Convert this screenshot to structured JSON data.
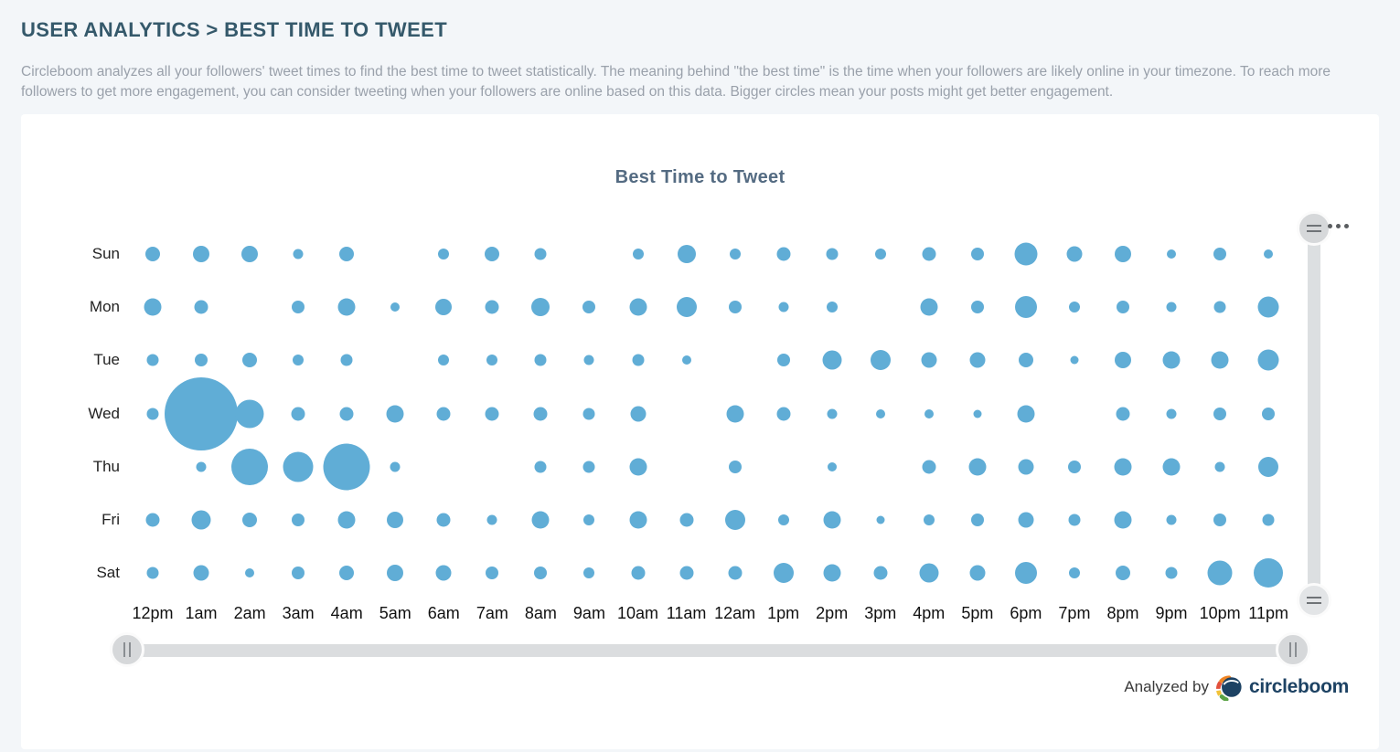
{
  "page": {
    "breadcrumb": "USER ANALYTICS > BEST TIME TO TWEET",
    "description": "Circleboom analyzes all your followers' tweet times to find the best time to tweet statistically. The meaning behind \"the best time\" is the time when your followers are likely online in your timezone. To reach more followers to get more engagement, you can consider tweeting when your followers are online based on this data. Bigger circles mean your posts might get better engagement."
  },
  "chart_data": {
    "type": "scatter",
    "subtype": "bubble-matrix",
    "title": "Best Time to Tweet",
    "xlabel": "",
    "ylabel": "",
    "days": [
      "Sun",
      "Mon",
      "Tue",
      "Wed",
      "Thu",
      "Fri",
      "Sat"
    ],
    "hours": [
      "12pm",
      "1am",
      "2am",
      "3am",
      "4am",
      "5am",
      "6am",
      "7am",
      "8am",
      "9am",
      "10am",
      "11am",
      "12am",
      "1pm",
      "2pm",
      "3pm",
      "4pm",
      "5pm",
      "6pm",
      "7pm",
      "8pm",
      "9pm",
      "10pm",
      "11pm"
    ],
    "size_unit": "bubble radius in screen px; 0 means no bubble shown",
    "series": [
      {
        "name": "Sun",
        "radii": [
          8,
          9,
          9,
          5.5,
          8,
          0,
          6,
          8,
          6.5,
          0,
          6,
          10,
          6,
          7.5,
          6.5,
          6,
          7.5,
          7,
          12.5,
          8.5,
          9,
          5,
          7,
          5
        ]
      },
      {
        "name": "Mon",
        "radii": [
          9.5,
          7.5,
          0,
          7,
          9.5,
          5,
          9,
          7.5,
          10,
          7,
          9.5,
          11,
          7,
          5.5,
          6,
          0,
          9.5,
          7,
          12,
          6,
          7,
          5.5,
          6.5,
          11.5
        ]
      },
      {
        "name": "Tue",
        "radii": [
          6.5,
          7,
          8,
          6,
          6.5,
          0,
          6,
          6,
          6.5,
          5.5,
          6.5,
          5,
          0,
          7,
          10.5,
          11,
          8.5,
          8.5,
          8,
          4.5,
          9,
          9.5,
          9.5,
          11.5
        ]
      },
      {
        "name": "Wed",
        "radii": [
          6.5,
          40,
          15.5,
          7.5,
          7.5,
          9.5,
          7.5,
          7.5,
          7.5,
          6.5,
          8.5,
          0,
          9.5,
          7.5,
          5.5,
          5,
          5,
          4.5,
          9.5,
          0,
          7.5,
          5.5,
          7,
          7
        ]
      },
      {
        "name": "Thu",
        "radii": [
          0,
          5.5,
          20,
          16.5,
          25.5,
          5.5,
          0,
          0,
          6.5,
          6.5,
          9.5,
          0,
          7,
          0,
          5,
          0,
          7.5,
          9.5,
          8.5,
          7,
          9.5,
          9.5,
          5.5,
          11
        ]
      },
      {
        "name": "Fri",
        "radii": [
          7.5,
          10.5,
          8,
          7,
          9.5,
          9,
          7.5,
          5.5,
          9.5,
          6,
          9.5,
          7.5,
          11,
          6,
          9.5,
          4.5,
          6,
          7,
          8.5,
          6.5,
          9.5,
          5.5,
          7,
          6.5
        ]
      },
      {
        "name": "Sat",
        "radii": [
          6.5,
          8.5,
          5,
          7,
          8,
          9,
          8.5,
          7,
          7,
          6,
          7.5,
          7.5,
          7.5,
          11,
          9.5,
          7.5,
          10.5,
          8.5,
          12,
          6,
          8,
          6.5,
          13.5,
          16
        ]
      }
    ],
    "legend": "none",
    "grid": false
  },
  "colors": {
    "bubble": "#60add6",
    "breadcrumb_text": "#35596b",
    "chart_title_text": "#546b82",
    "description_text": "#9aa1ab",
    "track_gray": "#dcdfe1",
    "brand_navy": "#1d4263"
  },
  "controls": {
    "menu_dots_icon": "ellipsis-menu",
    "v_scroll_top_handle": "drag-handle",
    "v_scroll_bottom_handle": "drag-handle",
    "h_slider_left_handle": "range-handle",
    "h_slider_right_handle": "range-handle"
  },
  "footer": {
    "analyzed_by": "Analyzed by",
    "brand": "circleboom"
  }
}
